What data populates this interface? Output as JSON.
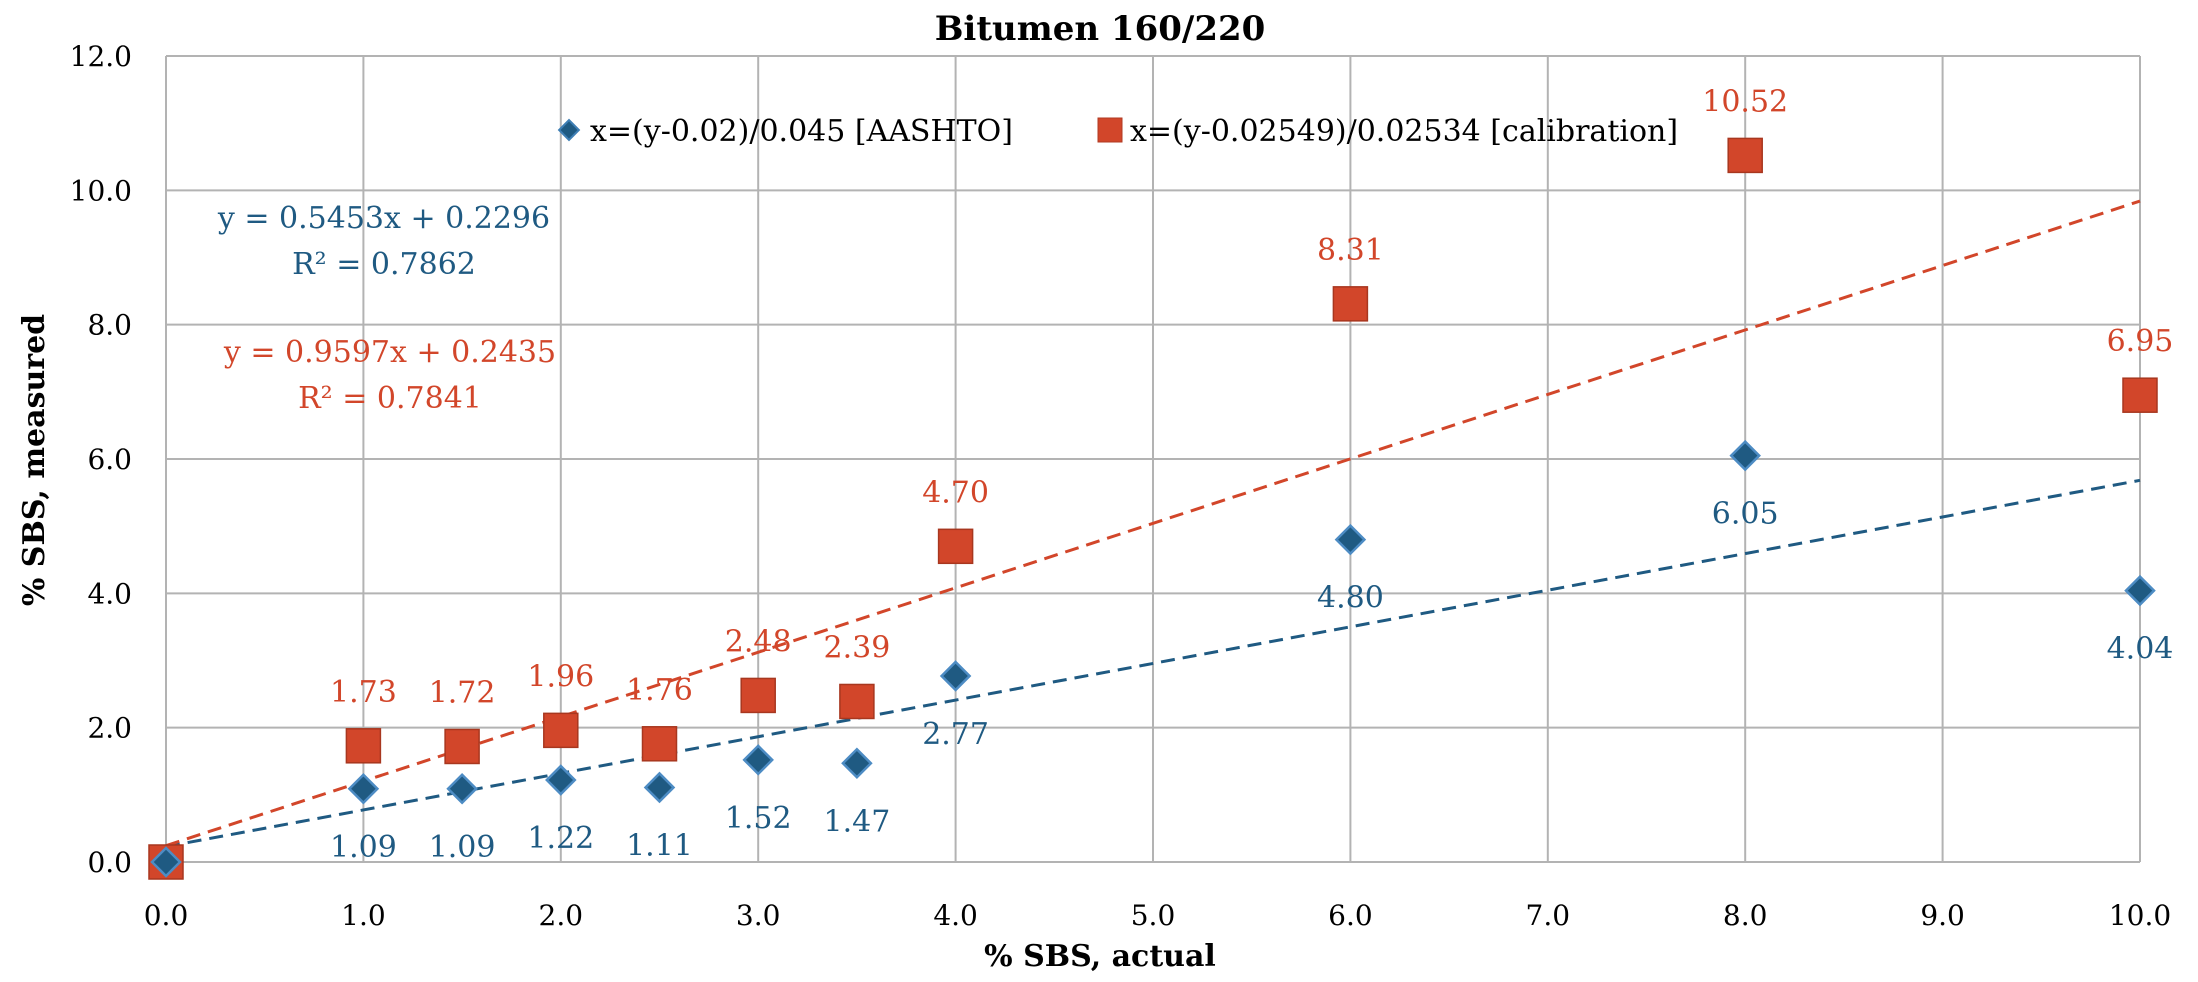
{
  "chart_data": {
    "type": "scatter",
    "title": "Bitumen 160/220",
    "xlabel": "% SBS, actual",
    "ylabel": "% SBS, measured",
    "xlim": [
      0,
      10
    ],
    "ylim": [
      0,
      12
    ],
    "x_ticks": [
      "0.0",
      "1.0",
      "2.0",
      "3.0",
      "4.0",
      "5.0",
      "6.0",
      "7.0",
      "8.0",
      "9.0",
      "10.0"
    ],
    "y_ticks": [
      "0.0",
      "2.0",
      "4.0",
      "6.0",
      "8.0",
      "10.0",
      "12.0"
    ],
    "grid": true,
    "legend_position": "top-center",
    "series": [
      {
        "name": "x=(y-0.02)/0.045 [AASHTO]",
        "marker": "diamond",
        "color": "#1f5a82",
        "label_color": "#1f5a82",
        "x": [
          0.0,
          1.0,
          1.5,
          2.0,
          2.5,
          3.0,
          3.5,
          4.0,
          6.0,
          8.0,
          10.0
        ],
        "y": [
          0.0,
          1.09,
          1.09,
          1.22,
          1.11,
          1.52,
          1.47,
          2.77,
          4.8,
          6.05,
          4.04
        ],
        "labels": [
          "",
          "1.09",
          "1.09",
          "1.22",
          "1.11",
          "1.52",
          "1.47",
          "2.77",
          "4.80",
          "6.05",
          "4.04"
        ],
        "trendline": {
          "slope": 0.5453,
          "intercept": 0.2296,
          "equation": "y = 0.5453x + 0.2296",
          "r2": "R² = 0.7862"
        }
      },
      {
        "name": "x=(y-0.02549)/0.02534 [calibration]",
        "marker": "square",
        "color": "#d2462a",
        "label_color": "#d2462a",
        "x": [
          0.0,
          1.0,
          1.5,
          2.0,
          2.5,
          3.0,
          3.5,
          4.0,
          6.0,
          8.0,
          10.0
        ],
        "y": [
          0.0,
          1.73,
          1.72,
          1.96,
          1.76,
          2.48,
          2.39,
          4.7,
          8.31,
          10.52,
          6.95
        ],
        "labels": [
          "",
          "1.73",
          "1.72",
          "1.96",
          "1.76",
          "2.48",
          "2.39",
          "4.70",
          "8.31",
          "10.52",
          "6.95"
        ],
        "trendline": {
          "slope": 0.9597,
          "intercept": 0.2435,
          "equation": "y = 0.9597x + 0.2435",
          "r2": "R² = 0.7841"
        }
      }
    ]
  }
}
